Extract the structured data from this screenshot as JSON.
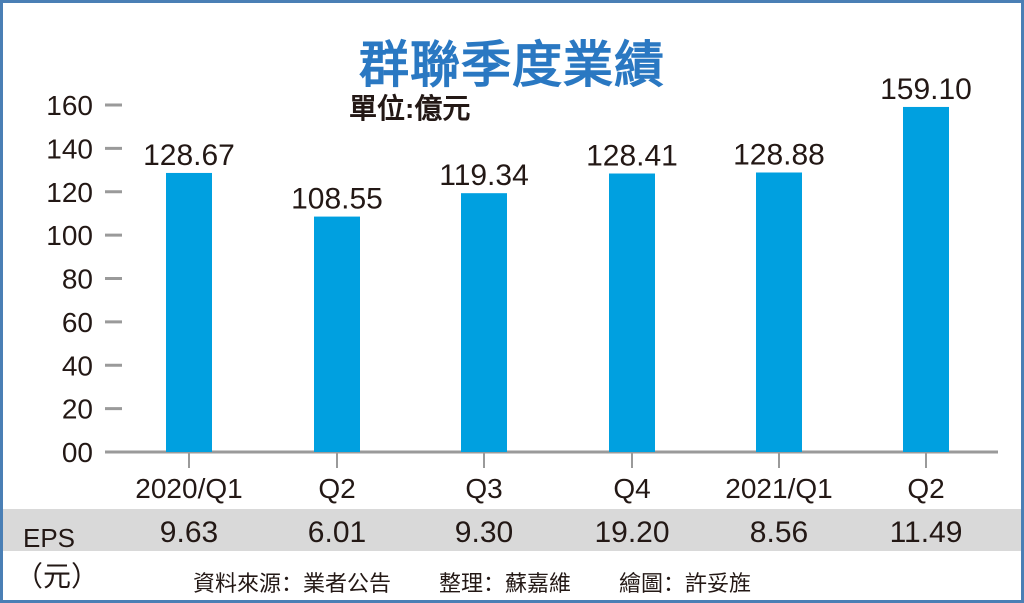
{
  "chart_data": {
    "type": "bar",
    "title": "群聯季度業績",
    "unit_label": "單位:億元",
    "categories": [
      "2020/Q1",
      "Q2",
      "Q3",
      "Q4",
      "2021/Q1",
      "Q2"
    ],
    "values": [
      128.67,
      108.55,
      119.34,
      128.41,
      128.88,
      159.1
    ],
    "value_labels": [
      "128.67",
      "108.55",
      "119.34",
      "128.41",
      "128.88",
      "159.10"
    ],
    "ylim": [
      0,
      160
    ],
    "yticks": [
      0,
      20,
      40,
      60,
      80,
      100,
      120,
      140,
      160
    ],
    "ytick_labels": [
      "00",
      "20",
      "40",
      "60",
      "80",
      "100",
      "120",
      "140",
      "160"
    ],
    "bar_color": "#00a0e0",
    "eps": {
      "label": "EPS",
      "unit": "（元）",
      "values": [
        "9.63",
        "6.01",
        "9.30",
        "19.20",
        "8.56",
        "11.49"
      ]
    }
  },
  "credits": {
    "source": "資料來源：業者公告",
    "editor": "整理：蘇嘉維",
    "artist": "繪圖：許妥旌"
  }
}
